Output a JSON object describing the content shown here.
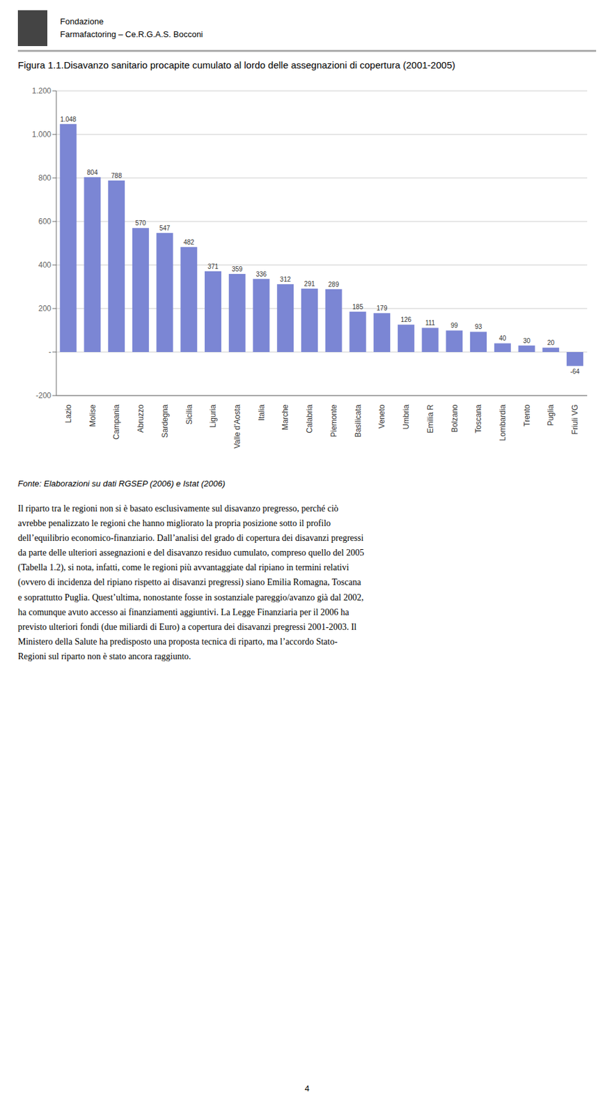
{
  "chart_data": {
    "type": "bar",
    "title": "Figura 1.1.Disavanzo sanitario procapite cumulato al lordo delle assegnazioni di copertura (2001-2005)",
    "categories": [
      "Lazio",
      "Molise",
      "Campania",
      "Abruzzo",
      "Sardegna",
      "Sicilia",
      "Liguria",
      "Valle d'Aosta",
      "Italia",
      "Marche",
      "Calabria",
      "Piemonte",
      "Basilicata",
      "Veneto",
      "Umbria",
      "Emilia R",
      "Bolzano",
      "Toscana",
      "Lombardia",
      "Trento",
      "Puglia",
      "Friuli VG"
    ],
    "values": [
      1048,
      804,
      788,
      570,
      547,
      482,
      371,
      359,
      336,
      312,
      291,
      289,
      185,
      179,
      126,
      111,
      99,
      93,
      40,
      30,
      20,
      -64
    ],
    "value_labels": [
      "1.048",
      "804",
      "788",
      "570",
      "547",
      "482",
      "371",
      "359",
      "336",
      "312",
      "291",
      "289",
      "185",
      "179",
      "126",
      "111",
      "99",
      "93",
      "40",
      "30",
      "20",
      "-64"
    ],
    "data_labels": true,
    "color": "#7B86D4",
    "ylim": [
      -200,
      1200
    ],
    "yticks": [
      -200,
      {
        "value": 0,
        "label": "-"
      },
      200,
      400,
      600,
      800,
      {
        "value": 1000,
        "label": "1.000"
      },
      {
        "value": 1200,
        "label": "1.200"
      }
    ],
    "grid": true,
    "annotations": [
      "Fondazione",
      "Farmafactoring – Ce.R.G.A.S. Bocconi",
      "Fonte: Elaborazioni su dati RGSEP (2006) e Istat (2006)",
      "Il riparto tra le regioni non si è basato esclusivamente sul disavanzo pregresso, perché ciò\navrebbe penalizzato le regioni che hanno migliorato la propria posizione sotto il profilo\ndell’equilibrio economico-finanziario. Dall’analisi del grado di copertura dei disavanzi pregressi\nda parte delle ulteriori assegnazioni e del disavanzo residuo cumulato, compreso quello del 2005\n(Tabella 1.2), si nota, infatti, come le regioni più avvantaggiate dal ripiano in termini relativi\n(ovvero di incidenza del ripiano rispetto ai disavanzi pregressi) siano Emilia Romagna, Toscana\ne soprattutto Puglia. Quest’ultima, nonostante fosse in sostanziale pareggio/avanzo già dal 2002,\nha comunque avuto accesso ai finanziamenti aggiuntivi. La Legge Finanziaria per il 2006 ha\nprevisto ulteriori fondi (due miliardi di Euro) a copertura dei disavanzi pregressi 2001-2003. Il\nMinistero della Salute ha predisposto una proposta tecnica di riparto, ma l’accordo Stato-\nRegioni sul riparto non è stato ancora raggiunto.",
      "4"
    ]
  }
}
